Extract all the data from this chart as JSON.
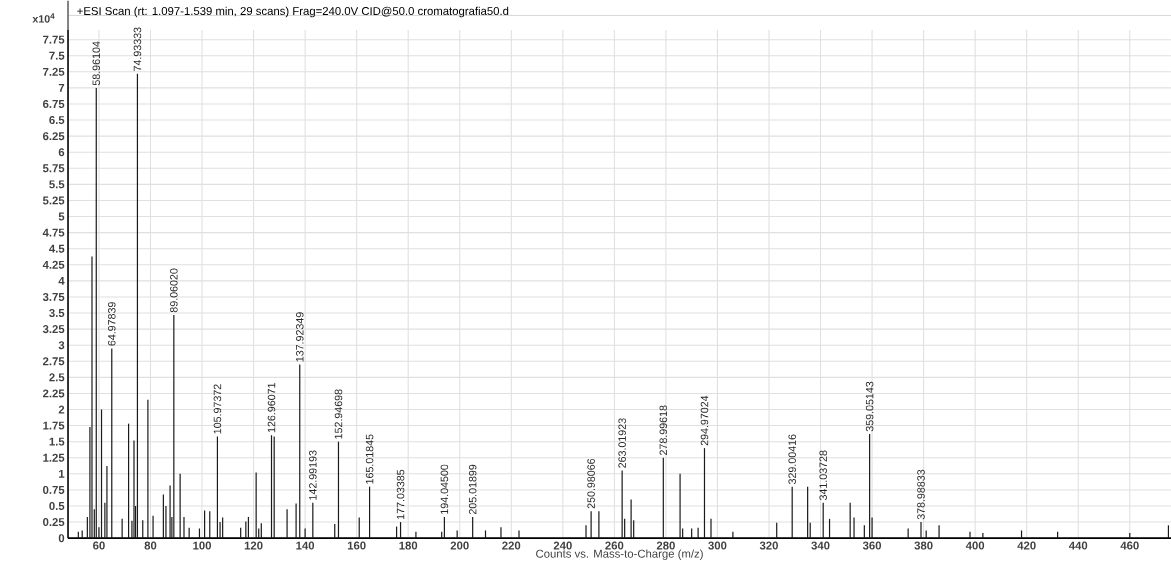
{
  "chart_data": {
    "type": "bar",
    "title": "+ESI Scan (rt: 1.097-1.539 min, 29 scans) Frag=240.0V CID@50.0 cromatografia50.d",
    "xlabel": "Counts vs. Mass-to-Charge (m/z)",
    "x": [
      52,
      53.5,
      55.5,
      56.5,
      57.3,
      58.2,
      58.96104,
      60,
      61,
      62.3,
      63.1,
      64.97839,
      69,
      71.5,
      72.8,
      73.6,
      74.2,
      74.93333,
      77,
      79,
      81,
      85,
      86,
      87.6,
      88.3,
      89.0602,
      91.5,
      93,
      95,
      99,
      101,
      103,
      105.97372,
      107,
      108,
      115,
      117,
      118,
      121,
      122,
      123,
      126.96071,
      128,
      133,
      136.5,
      137.92349,
      140,
      142.99193,
      151.5,
      152.94698,
      161,
      165.01845,
      175.5,
      177.03385,
      183,
      193,
      194.045,
      199,
      205.01899,
      210,
      216,
      223,
      249,
      250.98066,
      254,
      263.01923,
      264,
      266.5,
      267.5,
      278.99618,
      285.5,
      286.5,
      290,
      292.5,
      294.97024,
      297.5,
      306,
      323,
      329.00416,
      335,
      336,
      341.03728,
      343.5,
      351.5,
      353,
      357,
      359.05143,
      360,
      374,
      378.98833,
      381,
      386,
      398,
      403,
      418,
      432,
      460,
      475
    ],
    "values": [
      0.1,
      0.12,
      0.33,
      1.73,
      4.38,
      0.45,
      7.0,
      0.17,
      2.0,
      0.55,
      1.12,
      2.95,
      0.3,
      1.78,
      0.27,
      1.52,
      0.5,
      7.22,
      0.28,
      2.15,
      0.35,
      0.68,
      0.5,
      0.82,
      0.33,
      3.47,
      1.0,
      0.33,
      0.16,
      0.15,
      0.43,
      0.42,
      1.58,
      0.25,
      0.32,
      0.16,
      0.26,
      0.33,
      1.02,
      0.15,
      0.23,
      1.6,
      1.58,
      0.45,
      0.54,
      2.7,
      0.15,
      0.55,
      0.22,
      1.5,
      0.32,
      0.8,
      0.18,
      0.25,
      0.1,
      0.1,
      0.33,
      0.12,
      0.33,
      0.12,
      0.17,
      0.12,
      0.2,
      0.42,
      0.42,
      1.05,
      0.3,
      0.6,
      0.28,
      1.25,
      1.0,
      0.15,
      0.15,
      0.16,
      1.4,
      0.3,
      0.1,
      0.24,
      0.8,
      0.8,
      0.24,
      0.55,
      0.3,
      0.55,
      0.32,
      0.2,
      1.62,
      0.32,
      0.15,
      0.25,
      0.12,
      0.2,
      0.1,
      0.08,
      0.12,
      0.1,
      0.08,
      0.2
    ],
    "color": "#1a1a1a",
    "xlim": [
      48,
      476
    ],
    "ylim": [
      0,
      7.9
    ],
    "xticks": [
      60,
      80,
      100,
      120,
      140,
      160,
      180,
      200,
      220,
      240,
      260,
      280,
      300,
      320,
      340,
      360,
      380,
      400,
      420,
      440,
      460
    ],
    "yticks": [
      0,
      0.25,
      0.5,
      0.75,
      1,
      1.25,
      1.5,
      1.75,
      2,
      2.25,
      2.5,
      2.75,
      3,
      3.25,
      3.5,
      3.75,
      4,
      4.25,
      4.5,
      4.75,
      5,
      5.25,
      5.5,
      5.75,
      6,
      6.25,
      6.5,
      6.75,
      7,
      7.25,
      7.5,
      7.75
    ],
    "grid": true,
    "annotations": [
      "x10$^{4}$",
      {
        "text": "58.96104",
        "x": 58.96104,
        "y": 7.0
      },
      {
        "text": "74.93333",
        "x": 74.93333,
        "y": 7.22
      },
      {
        "text": "64.97839",
        "x": 64.97839,
        "y": 2.95
      },
      {
        "text": "89.06020",
        "x": 89.0602,
        "y": 3.47
      },
      {
        "text": "105.97372",
        "x": 105.97372,
        "y": 1.58
      },
      {
        "text": "126.96071",
        "x": 126.96071,
        "y": 1.6
      },
      {
        "text": "137.92349",
        "x": 137.92349,
        "y": 2.7
      },
      {
        "text": "142.99193",
        "x": 142.99193,
        "y": 0.55
      },
      {
        "text": "152.94698",
        "x": 152.94698,
        "y": 1.5
      },
      {
        "text": "165.01845",
        "x": 165.01845,
        "y": 0.8
      },
      {
        "text": "177.03385",
        "x": 177.03385,
        "y": 0.25
      },
      {
        "text": "194.04500",
        "x": 194.045,
        "y": 0.33
      },
      {
        "text": "205.01899",
        "x": 205.01899,
        "y": 0.33
      },
      {
        "text": "250.98066",
        "x": 250.98066,
        "y": 0.42
      },
      {
        "text": "263.01923",
        "x": 263.01923,
        "y": 1.05
      },
      {
        "text": "278.99618",
        "x": 278.99618,
        "y": 1.25
      },
      {
        "text": "294.97024",
        "x": 294.97024,
        "y": 1.4
      },
      {
        "text": "329.00416",
        "x": 329.00416,
        "y": 0.8
      },
      {
        "text": "341.03728",
        "x": 341.03728,
        "y": 0.55
      },
      {
        "text": "359.05143",
        "x": 359.05143,
        "y": 1.62
      },
      {
        "text": "378.98833",
        "x": 378.98833,
        "y": 0.25
      }
    ]
  }
}
